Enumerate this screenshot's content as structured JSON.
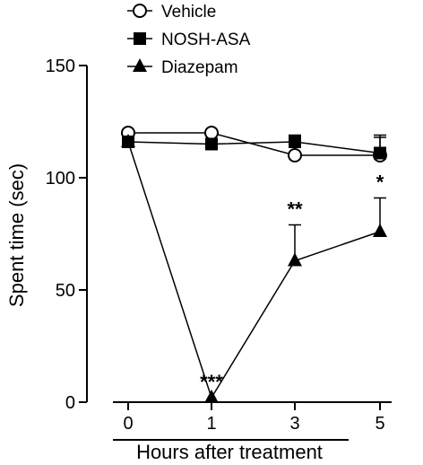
{
  "chart_data": {
    "type": "line",
    "xlabel": "Hours after treatment",
    "ylabel": "Spent time (sec)",
    "categories": [
      "0",
      "1",
      "3",
      "5"
    ],
    "ylim": [
      0,
      150
    ],
    "yticks": [
      "0",
      "50",
      "100",
      "150"
    ],
    "grid": false,
    "legend_position": "top-left",
    "series": [
      {
        "name": "Vehicle",
        "marker": "open-circle",
        "values": [
          120,
          120,
          110,
          110
        ],
        "error": [
          0,
          0,
          5,
          8
        ]
      },
      {
        "name": "NOSH-ASA",
        "marker": "filled-square",
        "values": [
          116,
          115,
          116,
          111
        ],
        "error": [
          0,
          0,
          3,
          8
        ]
      },
      {
        "name": "Diazepam",
        "marker": "filled-triangle",
        "values": [
          116,
          2,
          63,
          76
        ],
        "error": [
          0,
          0,
          16,
          15
        ]
      }
    ],
    "annotations": [
      {
        "category": "1",
        "series": "Diazepam",
        "text": "***"
      },
      {
        "category": "3",
        "series": "Diazepam",
        "text": "**"
      },
      {
        "category": "5",
        "series": "Diazepam",
        "text": "*"
      }
    ]
  }
}
